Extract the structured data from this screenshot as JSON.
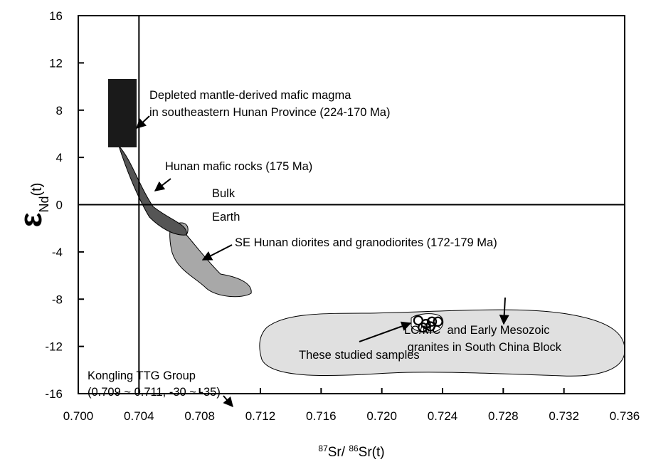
{
  "chart_data": {
    "type": "scatter",
    "xlabel": [
      {
        "text": "87",
        "sup": true
      },
      {
        "text": "Sr/ ",
        "sup": false
      },
      {
        "text": "86",
        "sup": true
      },
      {
        "text": "Sr(t)",
        "sup": false
      }
    ],
    "ylabel": [
      {
        "text": "ε",
        "sub": false
      },
      {
        "text": "Nd",
        "sub": true
      },
      {
        "text": "(t)",
        "sub": false
      }
    ],
    "xlim": [
      0.7,
      0.736
    ],
    "xticks": [
      {
        "value": 0.7,
        "label": "0.700"
      },
      {
        "value": 0.704,
        "label": "0.704"
      },
      {
        "value": 0.708,
        "label": "0.708"
      },
      {
        "value": 0.712,
        "label": "0.712"
      },
      {
        "value": 0.716,
        "label": "0.716"
      },
      {
        "value": 0.72,
        "label": "0.720"
      },
      {
        "value": 0.724,
        "label": "0.724"
      },
      {
        "value": 0.728,
        "label": "0.728"
      },
      {
        "value": 0.732,
        "label": "0.732"
      },
      {
        "value": 0.736,
        "label": "0.736"
      }
    ],
    "ylim": [
      -16,
      16
    ],
    "yticks": [
      -16,
      -12,
      -8,
      -4,
      0,
      4,
      8,
      12,
      16
    ],
    "reference_lines": {
      "x": 0.704,
      "y": 0
    },
    "series": [
      {
        "name": "These studied samples",
        "color": "#000000",
        "x": [
          0.7224,
          0.7229,
          0.7233,
          0.7237,
          0.7227,
          0.7232
        ],
        "values": [
          -9.8,
          -10.1,
          -9.9,
          -9.9,
          -10.4,
          -10.3
        ]
      }
    ],
    "annotations": {
      "depleted": [
        "Depleted mantle-derived mafic magma",
        "in southeastern Hunan Province (224-170 Ma)"
      ],
      "hunan_mafic": "Hunan mafic rocks (175 Ma)",
      "bulk_earth": [
        "Bulk",
        "Earth"
      ],
      "se_hunan": "SE Hunan diorites and granodiorites (172-179 Ma)",
      "lcmc": [
        "LC/MC  and Early Mesozoic",
        " granites in South China Block"
      ],
      "kongling": [
        "Kongling TTG Group",
        "(0.709 ~ 0.711, -30 ~ -35)"
      ]
    }
  }
}
